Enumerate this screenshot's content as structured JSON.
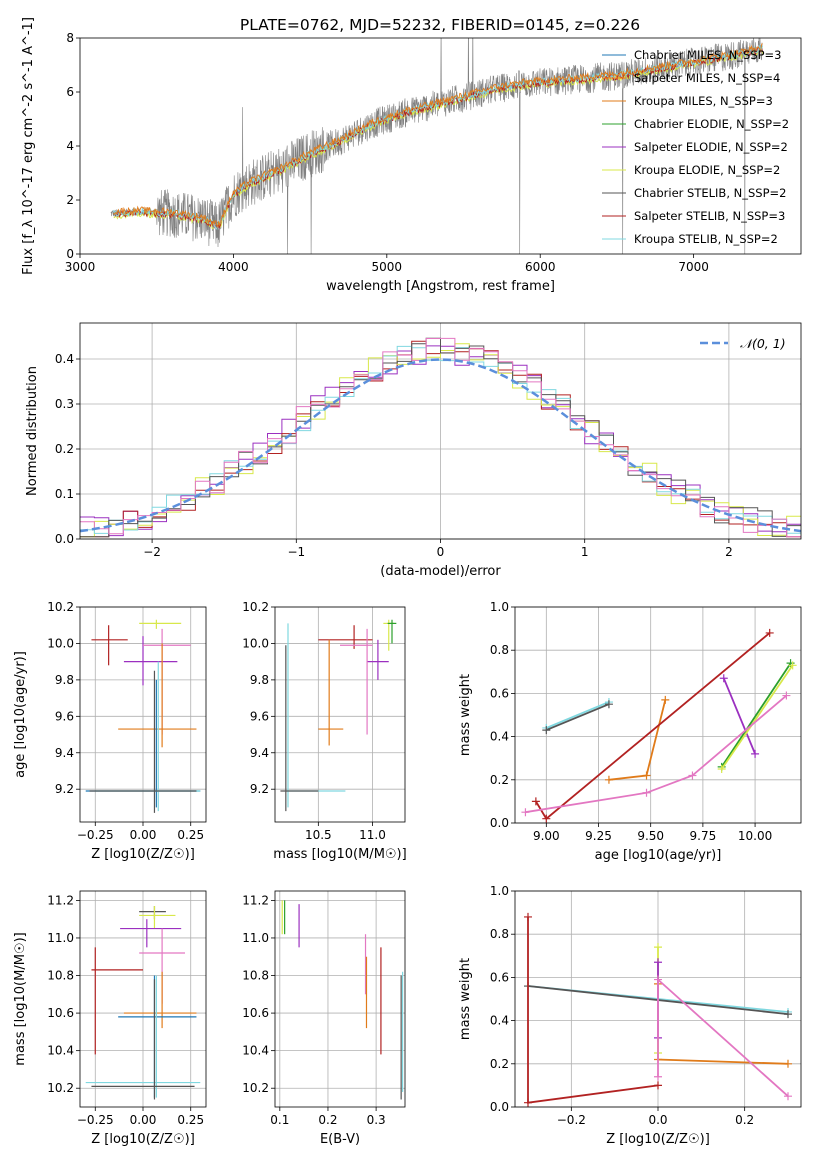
{
  "figure": {
    "title": "PLATE=0762, MJD=52232, FIBERID=0145, z=0.226"
  },
  "colors": {
    "chabrier_miles": "#1f77b4",
    "salpeter_miles": "#ff7f0e",
    "kroupa_miles": "#e07b1a",
    "chabrier_elodie": "#2ca02c",
    "salpeter_elodie": "#9b30c0",
    "kroupa_elodie": "#d8e84a",
    "chabrier_stelib": "#555555",
    "salpeter_stelib": "#b22222",
    "kroupa_stelib": "#80d8e0",
    "kroupa_pink": "#e377c2",
    "observed": "#808080",
    "normal": "#5b8fdb"
  },
  "chart_data": [
    {
      "id": "spectrum",
      "type": "line",
      "title": "PLATE=0762, MJD=52232, FIBERID=0145, z=0.226",
      "xlabel": "wavelength [Angstrom, rest frame]",
      "ylabel": "Flux [f_λ 10^-17 erg cm^-2 s^-1 A^-1]",
      "xlim": [
        3000,
        7700
      ],
      "ylim": [
        0,
        8
      ],
      "xticks": [
        3000,
        4000,
        5000,
        6000,
        7000
      ],
      "yticks": [
        0,
        2,
        4,
        6,
        8
      ],
      "legend_position": "right",
      "legend": [
        {
          "label": "Chabrier MILES, N_SSP=3",
          "color": "chabrier_miles"
        },
        {
          "label": "Salpeter MILES, N_SSP=4",
          "color": "salpeter_miles"
        },
        {
          "label": "Kroupa MILES, N_SSP=3",
          "color": "kroupa_miles"
        },
        {
          "label": "Chabrier ELODIE, N_SSP=2",
          "color": "chabrier_elodie"
        },
        {
          "label": "Salpeter ELODIE, N_SSP=2",
          "color": "salpeter_elodie"
        },
        {
          "label": "Kroupa ELODIE, N_SSP=2",
          "color": "kroupa_elodie"
        },
        {
          "label": "Chabrier STELIB, N_SSP=2",
          "color": "chabrier_stelib"
        },
        {
          "label": "Salpeter STELIB, N_SSP=3",
          "color": "salpeter_stelib"
        },
        {
          "label": "Kroupa STELIB, N_SSP=2",
          "color": "kroupa_stelib"
        }
      ],
      "continuum": {
        "x": [
          3200,
          3400,
          3600,
          3800,
          3900,
          4000,
          4100,
          4300,
          4500,
          4700,
          4900,
          5100,
          5300,
          5500,
          5700,
          5900,
          6100,
          6300,
          6500,
          6700,
          6900,
          7100,
          7300,
          7450
        ],
        "y": [
          1.5,
          1.55,
          1.5,
          1.3,
          1.0,
          2.2,
          2.6,
          3.1,
          3.7,
          4.2,
          4.8,
          5.2,
          5.5,
          5.8,
          6.1,
          6.3,
          6.4,
          6.5,
          6.6,
          6.8,
          7.0,
          7.2,
          7.4,
          7.6
        ]
      },
      "observed_range": [
        3200,
        7450
      ]
    },
    {
      "id": "residuals",
      "type": "bar",
      "xlabel": "(data-model)/error",
      "ylabel": "Normed distribution",
      "xlim": [
        -2.5,
        2.5
      ],
      "ylim": [
        0,
        0.48
      ],
      "xticks": [
        -2,
        -1,
        0,
        1,
        2
      ],
      "yticks": [
        0.0,
        0.1,
        0.2,
        0.3,
        0.4
      ],
      "grid": true,
      "legend_position": "top-right",
      "normal_label": "𝒩(0, 1)",
      "bin_width": 0.1
    },
    {
      "id": "z_age",
      "type": "scatter",
      "xlabel": "Z [log10(Z/Z☉)]",
      "ylabel": "age  [log10(age/yr)]",
      "xlim": [
        -0.33,
        0.33
      ],
      "ylim": [
        9.02,
        10.2
      ],
      "xticks": [
        -0.25,
        0.0,
        0.25
      ],
      "yticks": [
        9.2,
        9.4,
        9.6,
        9.8,
        10.0,
        10.2
      ],
      "grid": true,
      "points": [
        {
          "c": "salpeter_stelib",
          "x": -0.18,
          "y": 10.02,
          "xe": [
            -0.27,
            -0.08
          ],
          "ye": [
            9.88,
            10.1
          ]
        },
        {
          "c": "kroupa_elodie",
          "x": 0.07,
          "y": 10.11,
          "xe": [
            -0.02,
            0.2
          ],
          "ye": [
            10.08,
            10.13
          ]
        },
        {
          "c": "salpeter_elodie",
          "x": 0.0,
          "y": 9.9,
          "xe": [
            -0.1,
            0.18
          ],
          "ye": [
            9.77,
            10.04
          ]
        },
        {
          "c": "kroupa_pink",
          "x": 0.1,
          "y": 9.99,
          "xe": [
            0.0,
            0.25
          ],
          "ye": [
            9.5,
            10.08
          ]
        },
        {
          "c": "kroupa_miles",
          "x": 0.1,
          "y": 9.53,
          "xe": [
            -0.13,
            0.28
          ],
          "ye": [
            9.43,
            10.0
          ]
        },
        {
          "c": "chabrier_miles",
          "x": 0.07,
          "y": 9.19,
          "xe": [
            -0.3,
            0.3
          ],
          "ye": [
            9.1,
            9.8
          ]
        },
        {
          "c": "kroupa_stelib",
          "x": 0.08,
          "y": 9.19,
          "xe": [
            -0.25,
            0.3
          ],
          "ye": [
            9.08,
            9.9
          ]
        },
        {
          "c": "chabrier_stelib",
          "x": 0.06,
          "y": 9.19,
          "xe": [
            -0.28,
            0.28
          ],
          "ye": [
            9.07,
            9.85
          ]
        }
      ]
    },
    {
      "id": "mass_age",
      "type": "scatter",
      "xlabel": "mass [log10(M/M☉)]",
      "ylabel": "",
      "xlim": [
        10.1,
        11.3
      ],
      "ylim": [
        9.02,
        10.2
      ],
      "xticks": [
        10.5,
        11.0
      ],
      "yticks": [
        9.2,
        9.4,
        9.6,
        9.8,
        10.0,
        10.2
      ],
      "grid": true,
      "points": [
        {
          "c": "salpeter_stelib",
          "x": 10.83,
          "y": 10.02,
          "xe": [
            10.5,
            11.0
          ],
          "ye": [
            9.97,
            10.1
          ]
        },
        {
          "c": "kroupa_elodie",
          "x": 11.15,
          "y": 10.11,
          "xe": [
            11.1,
            11.2
          ],
          "ye": [
            9.96,
            10.13
          ]
        },
        {
          "c": "chabrier_elodie",
          "x": 11.18,
          "y": 10.11,
          "xe": [
            11.14,
            11.22
          ],
          "ye": [
            10.0,
            10.13
          ]
        },
        {
          "c": "salpeter_elodie",
          "x": 11.05,
          "y": 9.9,
          "xe": [
            10.95,
            11.15
          ],
          "ye": [
            9.8,
            10.02
          ]
        },
        {
          "c": "kroupa_pink",
          "x": 10.95,
          "y": 9.99,
          "xe": [
            10.7,
            11.0
          ],
          "ye": [
            9.5,
            10.08
          ]
        },
        {
          "c": "kroupa_miles",
          "x": 10.6,
          "y": 9.53,
          "xe": [
            10.5,
            10.73
          ],
          "ye": [
            9.44,
            10.02
          ]
        },
        {
          "c": "kroupa_stelib",
          "x": 10.22,
          "y": 9.19,
          "xe": [
            10.2,
            10.75
          ],
          "ye": [
            9.1,
            10.11
          ]
        },
        {
          "c": "chabrier_stelib",
          "x": 10.2,
          "y": 9.19,
          "xe": [
            10.15,
            10.5
          ],
          "ye": [
            9.08,
            9.99
          ]
        }
      ]
    },
    {
      "id": "age_weight",
      "type": "line",
      "xlabel": "age  [log10(age/yr)]",
      "ylabel": "mass weight",
      "xlim": [
        8.85,
        10.22
      ],
      "ylim": [
        0,
        1
      ],
      "xticks": [
        9.0,
        9.25,
        9.5,
        9.75,
        10.0
      ],
      "yticks": [
        0.0,
        0.2,
        0.4,
        0.6,
        0.8,
        1.0
      ],
      "grid": true,
      "series": [
        {
          "c": "kroupa_stelib",
          "x": [
            9.0,
            9.3
          ],
          "y": [
            0.44,
            0.56
          ]
        },
        {
          "c": "chabrier_stelib",
          "x": [
            9.0,
            9.3
          ],
          "y": [
            0.43,
            0.55
          ]
        },
        {
          "c": "kroupa_miles",
          "x": [
            9.3,
            9.48,
            9.57
          ],
          "y": [
            0.2,
            0.22,
            0.57
          ]
        },
        {
          "c": "salpeter_stelib",
          "x": [
            8.95,
            9.0,
            10.07
          ],
          "y": [
            0.1,
            0.02,
            0.88
          ]
        },
        {
          "c": "salpeter_elodie",
          "x": [
            9.85,
            10.0
          ],
          "y": [
            0.67,
            0.32
          ]
        },
        {
          "c": "chabrier_elodie",
          "x": [
            9.84,
            10.17
          ],
          "y": [
            0.26,
            0.74
          ]
        },
        {
          "c": "kroupa_elodie",
          "x": [
            9.84,
            10.18
          ],
          "y": [
            0.25,
            0.73
          ]
        },
        {
          "c": "kroupa_pink",
          "x": [
            8.9,
            9.48,
            9.7,
            10.15
          ],
          "y": [
            0.05,
            0.14,
            0.22,
            0.59
          ]
        }
      ]
    },
    {
      "id": "z_mass",
      "type": "scatter",
      "xlabel": "Z [log10(Z/Z☉)]",
      "ylabel": "mass [log10(M/M☉)]",
      "xlim": [
        -0.33,
        0.33
      ],
      "ylim": [
        10.1,
        11.25
      ],
      "xticks": [
        -0.25,
        0.0,
        0.25
      ],
      "yticks": [
        10.2,
        10.4,
        10.6,
        10.8,
        11.0,
        11.2
      ],
      "grid": true,
      "points": [
        {
          "c": "salpeter_stelib",
          "x": -0.25,
          "y": 10.83,
          "xe": [
            -0.27,
            0.0
          ],
          "ye": [
            10.38,
            10.95
          ]
        },
        {
          "c": "chabrier_stelib",
          "x": 0.06,
          "y": 11.14,
          "xe": [
            -0.02,
            0.12
          ],
          "ye": [
            11.1,
            11.17
          ]
        },
        {
          "c": "kroupa_elodie",
          "x": 0.06,
          "y": 11.12,
          "xe": [
            -0.02,
            0.17
          ],
          "ye": [
            11.05,
            11.17
          ]
        },
        {
          "c": "salpeter_elodie",
          "x": 0.02,
          "y": 11.05,
          "xe": [
            -0.12,
            0.2
          ],
          "ye": [
            10.95,
            11.1
          ]
        },
        {
          "c": "kroupa_pink",
          "x": 0.1,
          "y": 10.92,
          "xe": [
            -0.02,
            0.22
          ],
          "ye": [
            10.65,
            11.05
          ]
        },
        {
          "c": "kroupa_miles",
          "x": 0.1,
          "y": 10.6,
          "xe": [
            -0.1,
            0.28
          ],
          "ye": [
            10.52,
            10.82
          ]
        },
        {
          "c": "chabrier_miles",
          "x": 0.06,
          "y": 10.58,
          "xe": [
            -0.13,
            0.28
          ],
          "ye": [
            10.15,
            10.8
          ]
        },
        {
          "c": "kroupa_stelib",
          "x": 0.07,
          "y": 10.23,
          "xe": [
            -0.3,
            0.3
          ],
          "ye": [
            10.15,
            10.8
          ]
        },
        {
          "c": "chabrier_stelib",
          "x": 0.06,
          "y": 10.21,
          "xe": [
            -0.27,
            0.27
          ],
          "ye": [
            10.14,
            10.78
          ]
        }
      ]
    },
    {
      "id": "ebv_mass",
      "type": "scatter",
      "xlabel": "E(B-V)",
      "ylabel": "",
      "xlim": [
        0.09,
        0.36
      ],
      "ylim": [
        10.1,
        11.25
      ],
      "xticks": [
        0.1,
        0.2,
        0.3
      ],
      "yticks": [
        10.2,
        10.4,
        10.6,
        10.8,
        11.0,
        11.2
      ],
      "grid": true,
      "points": [
        {
          "c": "chabrier_elodie",
          "x": 0.11,
          "y": 11.12,
          "ye": [
            11.02,
            11.2
          ]
        },
        {
          "c": "kroupa_elodie",
          "x": 0.105,
          "y": 11.1,
          "ye": [
            11.02,
            11.2
          ]
        },
        {
          "c": "salpeter_elodie",
          "x": 0.14,
          "y": 11.1,
          "ye": [
            10.95,
            11.18
          ]
        },
        {
          "c": "kroupa_pink",
          "x": 0.278,
          "y": 10.9,
          "ye": [
            10.7,
            11.02
          ]
        },
        {
          "c": "kroupa_miles",
          "x": 0.28,
          "y": 10.68,
          "ye": [
            10.52,
            10.9
          ]
        },
        {
          "c": "salpeter_stelib",
          "x": 0.31,
          "y": 10.7,
          "ye": [
            10.38,
            10.95
          ]
        },
        {
          "c": "kroupa_stelib",
          "x": 0.355,
          "y": 10.5,
          "ye": [
            10.18,
            10.82
          ]
        },
        {
          "c": "chabrier_stelib",
          "x": 0.352,
          "y": 10.45,
          "ye": [
            10.14,
            10.8
          ]
        }
      ]
    },
    {
      "id": "z_weight",
      "type": "line",
      "xlabel": "Z [log10(Z/Z☉)]",
      "ylabel": "mass weight",
      "xlim": [
        -0.33,
        0.33
      ],
      "ylim": [
        0,
        1
      ],
      "xticks": [
        -0.2,
        0.0,
        0.2
      ],
      "yticks": [
        0.0,
        0.2,
        0.4,
        0.6,
        0.8,
        1.0
      ],
      "grid": true,
      "series": [
        {
          "c": "kroupa_stelib",
          "x": [
            -0.3,
            0.3
          ],
          "y": [
            0.56,
            0.44
          ]
        },
        {
          "c": "chabrier_stelib",
          "x": [
            -0.3,
            0.3
          ],
          "y": [
            0.56,
            0.43
          ]
        },
        {
          "c": "salpeter_stelib",
          "x": [
            -0.3,
            -0.3,
            0.0
          ],
          "y": [
            0.88,
            0.02,
            0.1
          ]
        },
        {
          "c": "kroupa_miles",
          "x": [
            0.0,
            0.0,
            0.3
          ],
          "y": [
            0.57,
            0.22,
            0.2
          ]
        },
        {
          "c": "kroupa_elodie",
          "x": [
            0.0,
            0.0
          ],
          "y": [
            0.74,
            0.25
          ]
        },
        {
          "c": "salpeter_elodie",
          "x": [
            0.0,
            0.0
          ],
          "y": [
            0.32,
            0.67
          ]
        },
        {
          "c": "kroupa_pink",
          "x": [
            0.0,
            0.0,
            0.3
          ],
          "y": [
            0.14,
            0.59,
            0.05
          ]
        }
      ]
    }
  ]
}
